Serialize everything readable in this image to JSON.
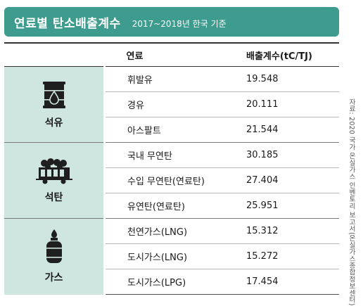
{
  "header": {
    "title": "연료별 탄소배출계수",
    "subtitle": "2017~2018년 한국 기준"
  },
  "table": {
    "col_fuel": "연료",
    "col_value": "배출계수(tC/TJ)",
    "groups": [
      {
        "category": "석유",
        "icon": "oil-drum-icon",
        "rows": [
          {
            "fuel": "휘발유",
            "value": "19.548"
          },
          {
            "fuel": "경유",
            "value": "20.111"
          },
          {
            "fuel": "아스팔트",
            "value": "21.544"
          }
        ]
      },
      {
        "category": "석탄",
        "icon": "coal-cart-icon",
        "rows": [
          {
            "fuel": "국내 무연탄",
            "value": "30.185"
          },
          {
            "fuel": "수입 무연탄(연료탄)",
            "value": "27.404"
          },
          {
            "fuel": "유연탄(연료탄)",
            "value": "25.951"
          }
        ]
      },
      {
        "category": "가스",
        "icon": "gas-cylinder-icon",
        "rows": [
          {
            "fuel": "천연가스(LNG)",
            "value": "15.312"
          },
          {
            "fuel": "도시가스(LNG)",
            "value": "15.272"
          },
          {
            "fuel": "도시가스(LPG)",
            "value": "17.454"
          }
        ]
      }
    ]
  },
  "source": "자료: 2020 국가 온실가스 인벤토리 보고서(온실가스종합정보센터)",
  "colors": {
    "accent": "#3e9c8e",
    "category_bg": "#cfe6e0",
    "icon_dark": "#1f1f1f"
  }
}
